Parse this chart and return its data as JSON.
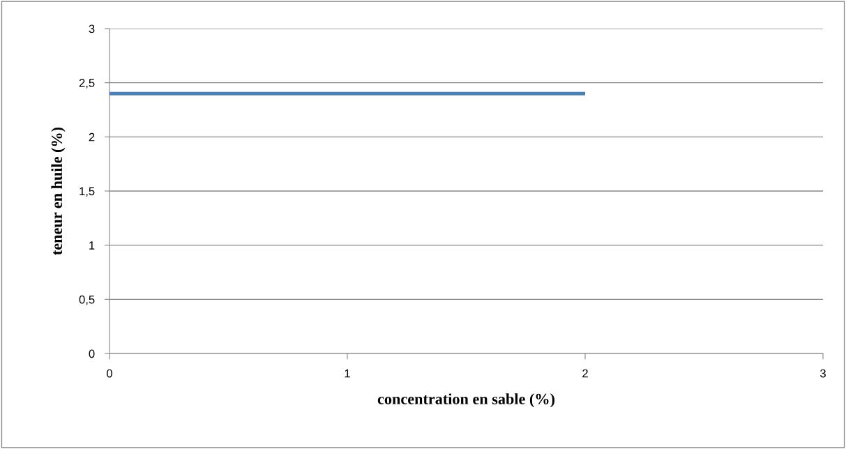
{
  "chart_data": {
    "type": "line",
    "xlabel": "concentration en sable (%)",
    "ylabel": "teneur en huile (%)",
    "x": [
      0,
      2
    ],
    "series": [
      {
        "color": "#4a7ebb",
        "values": [
          2.4,
          2.4
        ]
      }
    ],
    "xlim": [
      0,
      3
    ],
    "xticks": [
      0,
      1,
      2,
      3
    ],
    "ylim": [
      0,
      3
    ],
    "yticks": [
      0,
      {
        "value": 0.5,
        "label": "0,5"
      },
      1,
      {
        "value": 1.5,
        "label": "1,5"
      },
      2,
      {
        "value": 2.5,
        "label": "2,5"
      },
      3
    ],
    "grid": "y",
    "marker": "none",
    "line_style": "solid"
  }
}
